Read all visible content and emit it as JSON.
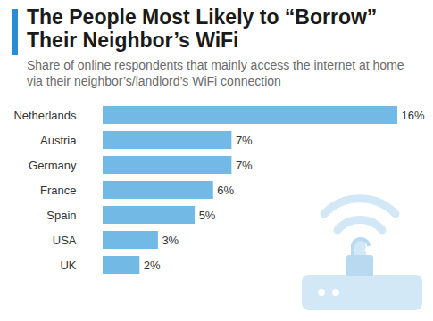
{
  "chart_data": {
    "type": "bar",
    "orientation": "horizontal",
    "title": "The People Most Likely to “Borrow” Their Neighbor’s WiFi",
    "subtitle": "Share of online respondents that mainly access the internet at home via their neighbor’s/landlord’s WiFi connection",
    "categories": [
      "Netherlands",
      "Austria",
      "Germany",
      "France",
      "Spain",
      "USA",
      "UK"
    ],
    "values": [
      16,
      7,
      7,
      6,
      5,
      3,
      2
    ],
    "value_labels": [
      "16%",
      "7%",
      "7%",
      "6%",
      "5%",
      "3%",
      "2%"
    ],
    "color": "#72b9e6",
    "xlim": [
      0,
      16
    ],
    "data_labels": true,
    "tick_labels": "y",
    "grid": false
  }
}
